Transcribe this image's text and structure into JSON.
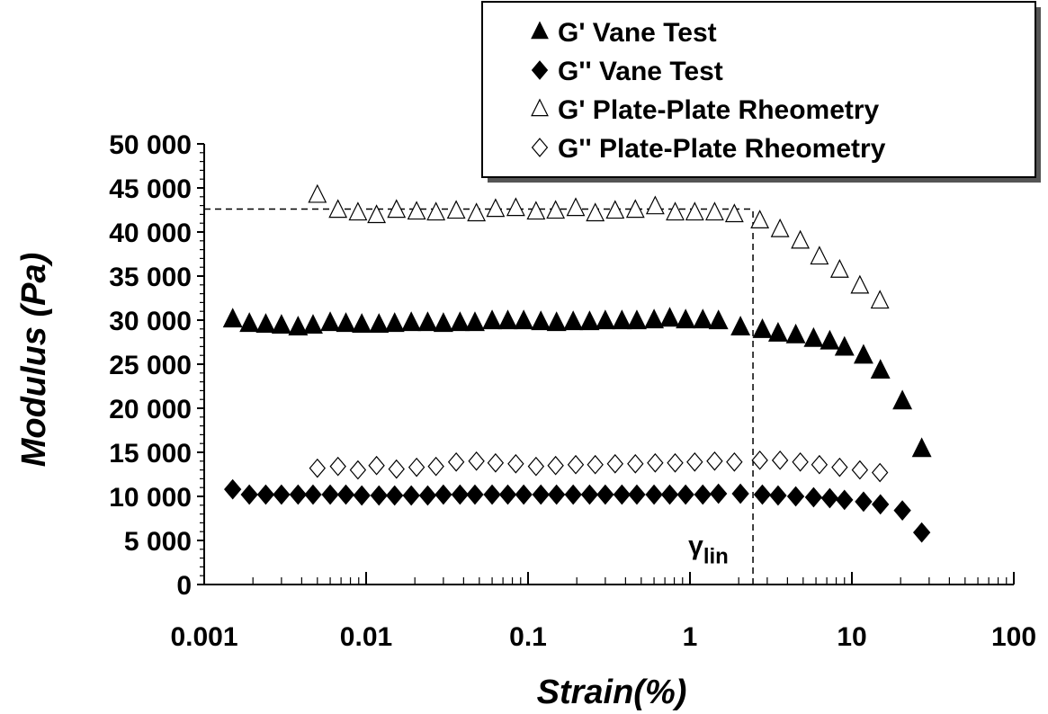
{
  "chart_data": {
    "type": "scatter",
    "title": "",
    "xlabel": "Strain(%)",
    "ylabel": "Modulus (Pa)",
    "x_scale": "log",
    "xlim": [
      0.001,
      100
    ],
    "ylim": [
      0,
      50000
    ],
    "x_ticks": [
      {
        "value": 0.001,
        "label": "0.001"
      },
      {
        "value": 0.01,
        "label": "0.01"
      },
      {
        "value": 0.1,
        "label": "0.1"
      },
      {
        "value": 1,
        "label": "1"
      },
      {
        "value": 10,
        "label": "10"
      },
      {
        "value": 100,
        "label": "100"
      }
    ],
    "y_ticks": [
      {
        "value": 0,
        "label": "0"
      },
      {
        "value": 5000,
        "label": "5 000"
      },
      {
        "value": 10000,
        "label": "10 000"
      },
      {
        "value": 15000,
        "label": "15 000"
      },
      {
        "value": 20000,
        "label": "20 000"
      },
      {
        "value": 25000,
        "label": "25 000"
      },
      {
        "value": 30000,
        "label": "30 000"
      },
      {
        "value": 35000,
        "label": "35 000"
      },
      {
        "value": 40000,
        "label": "40 000"
      },
      {
        "value": 45000,
        "label": "45 000"
      },
      {
        "value": 50000,
        "label": "50 000"
      }
    ],
    "grid": false,
    "legend_position": "top-right",
    "series": [
      {
        "name": "G' Vane Test",
        "marker": "triangle",
        "filled": true,
        "x": [
          0.0015,
          0.0019,
          0.0024,
          0.003,
          0.0038,
          0.0047,
          0.006,
          0.0075,
          0.0094,
          0.012,
          0.015,
          0.019,
          0.024,
          0.03,
          0.038,
          0.047,
          0.06,
          0.075,
          0.094,
          0.12,
          0.15,
          0.19,
          0.24,
          0.3,
          0.38,
          0.47,
          0.6,
          0.75,
          0.94,
          1.2,
          1.5,
          2.05,
          2.8,
          3.5,
          4.5,
          5.8,
          7.3,
          9.0,
          11.8,
          15.0,
          20.5,
          27.0
        ],
        "y": [
          30100,
          29600,
          29500,
          29400,
          29200,
          29400,
          29700,
          29600,
          29500,
          29500,
          29600,
          29700,
          29700,
          29600,
          29700,
          29700,
          29900,
          29900,
          29900,
          29800,
          29700,
          29800,
          29800,
          29900,
          29900,
          29900,
          30000,
          30200,
          30000,
          30000,
          29900,
          29200,
          28900,
          28500,
          28300,
          27900,
          27600,
          26900,
          26000,
          24300,
          20800,
          15400
        ]
      },
      {
        "name": "G'' Vane Test",
        "marker": "diamond",
        "filled": true,
        "x": [
          0.0015,
          0.0019,
          0.0024,
          0.003,
          0.0038,
          0.0047,
          0.006,
          0.0075,
          0.0094,
          0.012,
          0.015,
          0.019,
          0.024,
          0.03,
          0.038,
          0.047,
          0.06,
          0.075,
          0.094,
          0.12,
          0.15,
          0.19,
          0.24,
          0.3,
          0.38,
          0.47,
          0.6,
          0.75,
          0.94,
          1.2,
          1.5,
          2.05,
          2.8,
          3.5,
          4.5,
          5.8,
          7.3,
          9.0,
          11.8,
          15.0,
          20.5,
          27.0
        ],
        "y": [
          10800,
          10200,
          10200,
          10200,
          10200,
          10200,
          10200,
          10200,
          10100,
          10100,
          10100,
          10100,
          10100,
          10200,
          10200,
          10200,
          10200,
          10200,
          10200,
          10200,
          10200,
          10200,
          10200,
          10200,
          10200,
          10200,
          10200,
          10200,
          10200,
          10200,
          10300,
          10300,
          10200,
          10100,
          10000,
          9900,
          9800,
          9600,
          9400,
          9100,
          8400,
          5900
        ]
      },
      {
        "name": "G' Plate-Plate Rheometry",
        "marker": "triangle",
        "filled": false,
        "x": [
          0.005,
          0.0067,
          0.0089,
          0.0116,
          0.0154,
          0.0205,
          0.027,
          0.036,
          0.048,
          0.063,
          0.084,
          0.112,
          0.148,
          0.197,
          0.26,
          0.345,
          0.46,
          0.61,
          0.81,
          1.07,
          1.42,
          1.88,
          2.7,
          3.6,
          4.8,
          6.3,
          8.4,
          11.2,
          14.9
        ],
        "y": [
          44200,
          42500,
          42200,
          41900,
          42500,
          42300,
          42200,
          42400,
          42100,
          42600,
          42700,
          42300,
          42400,
          42700,
          42100,
          42400,
          42500,
          42900,
          42200,
          42200,
          42200,
          42000,
          41300,
          40300,
          39000,
          37200,
          35700,
          33900,
          32200
        ]
      },
      {
        "name": "G'' Plate-Plate Rheometry",
        "marker": "diamond",
        "filled": false,
        "x": [
          0.005,
          0.0067,
          0.0089,
          0.0116,
          0.0154,
          0.0205,
          0.027,
          0.036,
          0.048,
          0.063,
          0.084,
          0.112,
          0.148,
          0.197,
          0.26,
          0.345,
          0.46,
          0.61,
          0.81,
          1.07,
          1.42,
          1.88,
          2.7,
          3.6,
          4.8,
          6.3,
          8.4,
          11.2,
          14.9
        ],
        "y": [
          13200,
          13400,
          13000,
          13500,
          13100,
          13300,
          13400,
          13900,
          14000,
          13800,
          13700,
          13400,
          13500,
          13600,
          13600,
          13700,
          13700,
          13800,
          13800,
          13900,
          14000,
          13900,
          14100,
          14100,
          13900,
          13600,
          13300,
          13000,
          12700
        ]
      }
    ],
    "annotations": [
      {
        "type": "hline-dashed",
        "y": 42600,
        "x_from": 0.001,
        "x_to": 2.45
      },
      {
        "type": "vline-dashed",
        "x": 2.45,
        "y_from": 0,
        "y_to": 42600
      },
      {
        "type": "text",
        "label": "γ",
        "subscript": "lin",
        "x": 1.3,
        "y": 2800
      }
    ]
  }
}
